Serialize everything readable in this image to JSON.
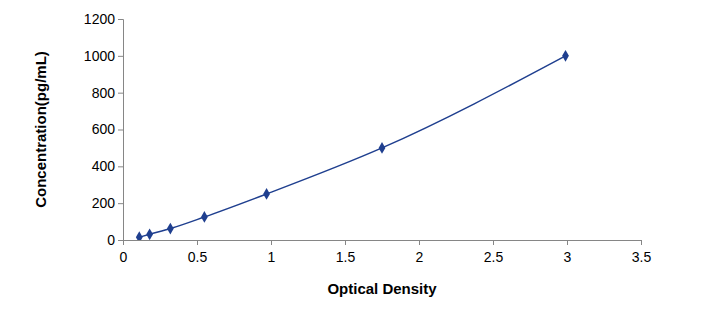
{
  "chart_data": {
    "type": "line",
    "x_label": "Optical Density",
    "y_label": "Concentration(pg/mL)",
    "x": [
      0.11,
      0.18,
      0.32,
      0.55,
      0.97,
      1.75,
      2.99
    ],
    "values": [
      15,
      31,
      62,
      125,
      250,
      500,
      1000
    ],
    "color": "#1f3f8f",
    "marker": "diamond",
    "line_style": "solid",
    "xlim": [
      0,
      3.5
    ],
    "xticks": [
      0,
      0.5,
      1,
      1.5,
      2,
      2.5,
      3,
      3.5
    ],
    "ylim": [
      0,
      1200
    ],
    "yticks": [
      0,
      200,
      400,
      600,
      800,
      1000,
      1200
    ],
    "grid": false
  }
}
